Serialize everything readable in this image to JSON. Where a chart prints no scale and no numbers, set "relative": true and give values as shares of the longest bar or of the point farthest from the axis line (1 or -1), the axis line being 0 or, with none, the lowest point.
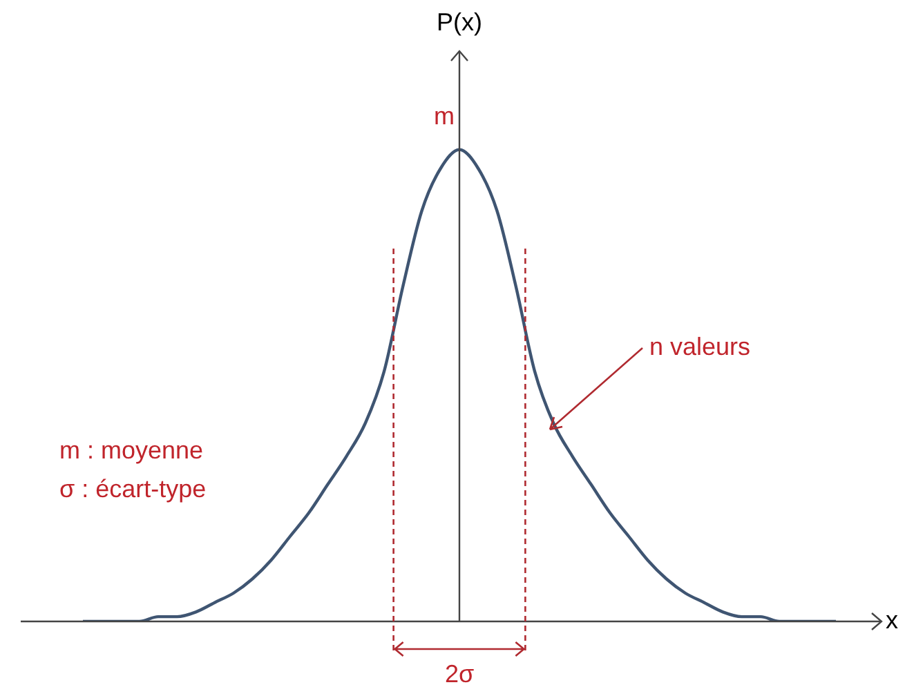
{
  "chart_data": {
    "type": "line",
    "relative": true,
    "xlabel": "x",
    "ylabel": "P(x)",
    "categories": [
      null,
      null,
      null,
      null,
      null,
      null,
      null,
      null,
      null,
      null,
      null,
      null,
      null,
      null,
      null,
      null,
      null,
      null,
      null,
      null,
      null,
      null,
      null,
      null,
      null,
      null,
      null,
      null,
      null,
      null,
      null,
      null,
      null,
      null,
      null,
      null,
      null,
      null,
      null,
      null,
      null
    ],
    "series": [
      {
        "color": "#3f5572",
        "values": [
          0,
          0,
          0,
          0,
          0.01,
          0.01,
          0.02,
          0.04,
          0.06,
          0.09,
          0.13,
          0.18,
          0.23,
          0.29,
          0.35,
          0.42,
          0.53,
          0.71,
          0.87,
          0.96,
          1,
          0.96,
          0.87,
          0.71,
          0.53,
          0.42,
          0.35,
          0.29,
          0.23,
          0.18,
          0.13,
          0.09,
          0.06,
          0.04,
          0.02,
          0.01,
          0.01,
          0,
          0,
          0,
          0
        ]
      }
    ],
    "annotations": [
      "m",
      "n valeurs",
      "m : moyenne",
      "σ : écart-type",
      "2σ"
    ],
    "legend": false,
    "grid": false,
    "marker": "none"
  }
}
